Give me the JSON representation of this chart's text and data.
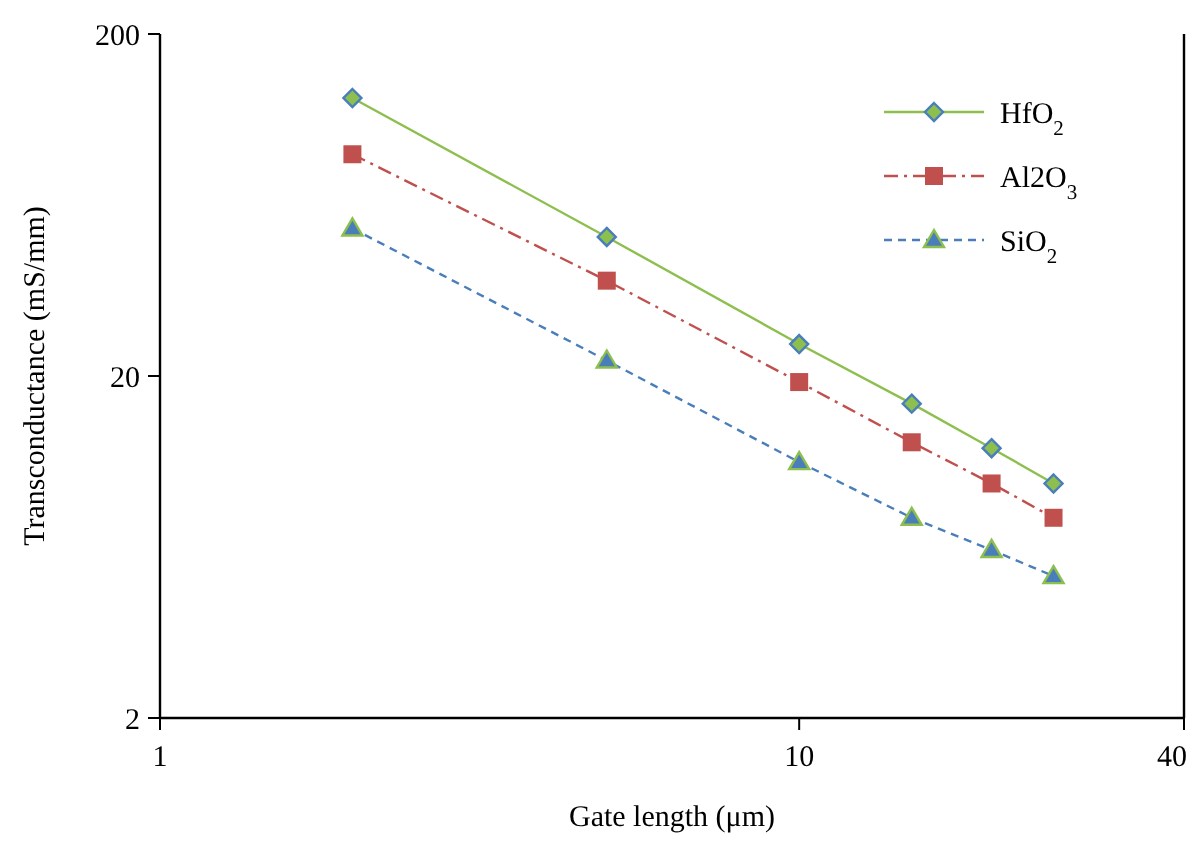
{
  "chart_data": {
    "type": "line",
    "xlabel": "Gate length (μm)",
    "ylabel": "Transconductance (mS/mm)",
    "x": [
      2,
      5,
      10,
      15,
      20,
      25
    ],
    "series": [
      {
        "name": "HfO$_{2}$",
        "color": "#8dbf4f",
        "marker": "diamond",
        "line_style": "solid",
        "values": [
          130,
          51,
          24.8,
          16.6,
          12.3,
          9.7
        ]
      },
      {
        "name": "Al2O$_{3}$",
        "color": "#c0504d",
        "marker": "square",
        "line_style": "dashdot",
        "values": [
          89,
          38,
          19.2,
          12.8,
          9.7,
          7.7
        ]
      },
      {
        "name": "SiO$_{2}$",
        "color": "#4a7ebb",
        "marker": "triangle",
        "line_style": "dashed",
        "values": [
          54,
          22.2,
          11.2,
          7.7,
          6.2,
          5.2
        ]
      }
    ],
    "log": "xy",
    "xlim": [
      1,
      40
    ],
    "xticks": [
      1,
      10,
      40
    ],
    "ylim": [
      2,
      200
    ],
    "yticks": [
      2,
      20,
      200
    ],
    "grid": false,
    "legend": "top right"
  }
}
